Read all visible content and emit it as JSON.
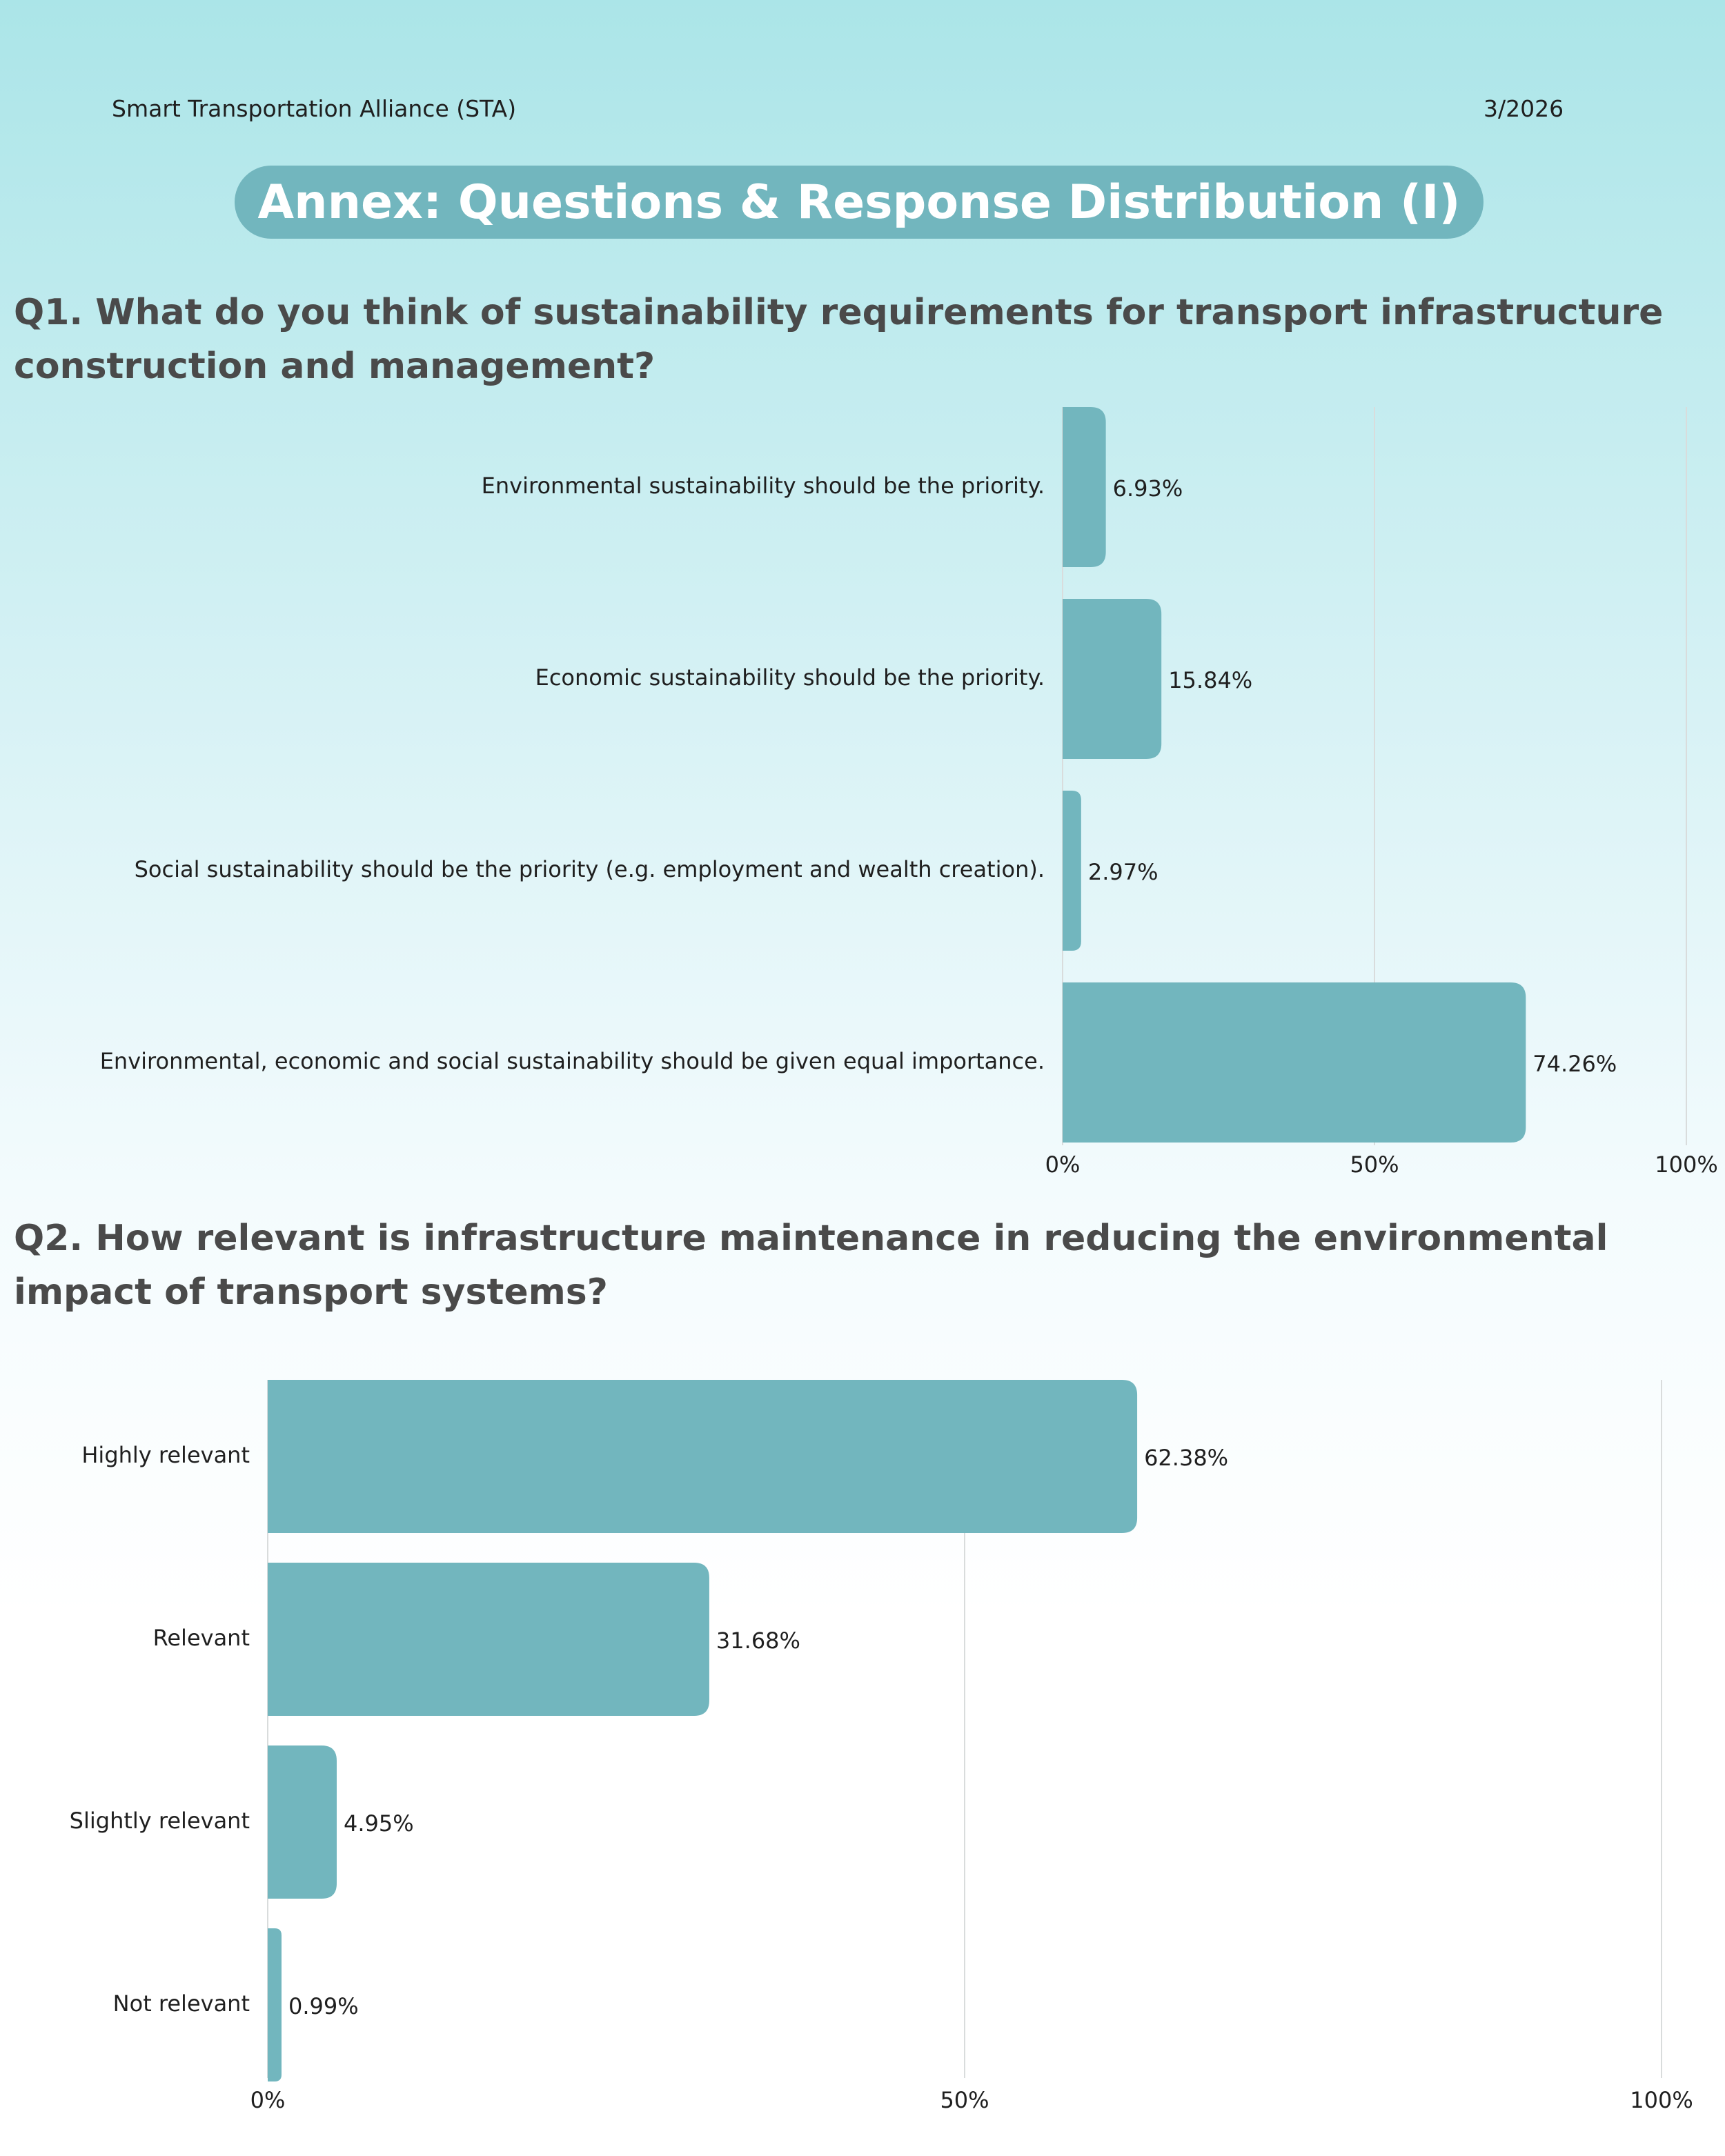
{
  "header": {
    "organization": "Smart Transportation Alliance (STA)",
    "date": "3/2026",
    "title": "Annex: Questions & Response Distribution (I)"
  },
  "colors": {
    "bar": "#72b6be",
    "title_pill": "#72b6be",
    "grid": "#d9dcdc",
    "question_text": "#4a4a4a"
  },
  "chart_data": [
    {
      "type": "bar",
      "orientation": "horizontal",
      "title": "Q1. What do you think of sustainability requirements for transport infrastructure construction and management?",
      "categories": [
        "Environmental sustainability should be the priority.",
        "Economic sustainability should be the priority.",
        "Social sustainability should be the priority (e.g. employment and wealth creation).",
        "Environmental, economic and social sustainability should be given equal importance."
      ],
      "values": [
        6.93,
        15.84,
        2.97,
        74.26
      ],
      "value_labels": [
        "6.93%",
        "15.84%",
        "2.97%",
        "74.26%"
      ],
      "xlim": [
        0,
        100
      ],
      "xticks": [
        "0%",
        "50%",
        "100%"
      ],
      "grid": true
    },
    {
      "type": "bar",
      "orientation": "horizontal",
      "title": "Q2. How relevant is infrastructure maintenance in reducing the environmental impact of transport systems?",
      "categories": [
        "Highly relevant",
        "Relevant",
        "Slightly relevant",
        "Not relevant"
      ],
      "values": [
        62.38,
        31.68,
        4.95,
        0.99
      ],
      "value_labels": [
        "62.38%",
        "31.68%",
        "4.95%",
        "0.99%"
      ],
      "xlim": [
        0,
        100
      ],
      "xticks": [
        "0%",
        "50%",
        "100%"
      ],
      "grid": true
    }
  ]
}
